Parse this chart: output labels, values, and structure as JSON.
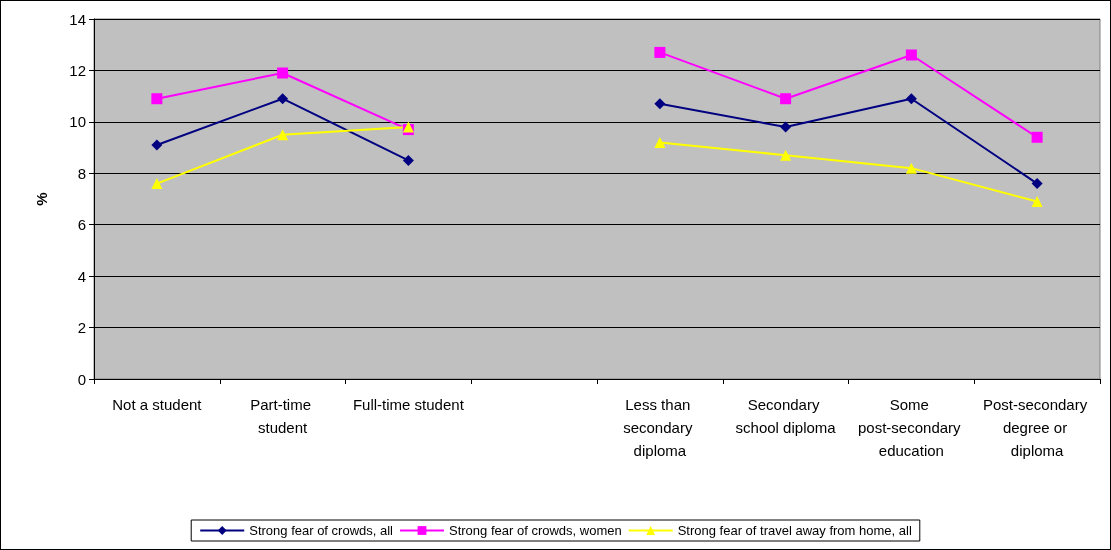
{
  "chart_data": {
    "type": "line",
    "ylabel": "%",
    "categories": [
      "Not a student",
      "Part-time student",
      "Full-time student",
      null,
      "Less than secondary diploma",
      "Secondary school diploma",
      "Some post-secondary education",
      "Post-secondary degree or diploma"
    ],
    "series": [
      {
        "name": "Strong fear of crowds, all",
        "color": "#000080",
        "marker": "diamond",
        "values": [
          9.1,
          10.9,
          8.5,
          null,
          10.7,
          9.8,
          10.9,
          7.6
        ]
      },
      {
        "name": "Strong fear of crowds, women",
        "color": "#ff00ff",
        "marker": "square",
        "values": [
          10.9,
          11.9,
          9.7,
          null,
          12.7,
          10.9,
          12.6,
          9.4
        ]
      },
      {
        "name": "Strong fear of travel away from home, all",
        "color": "#ffff00",
        "marker": "triangle",
        "values": [
          7.6,
          9.5,
          9.8,
          null,
          9.2,
          8.7,
          8.2,
          6.9
        ]
      }
    ],
    "ylim": [
      0,
      14
    ],
    "yticks": [
      0,
      2,
      4,
      6,
      8,
      10,
      12,
      14
    ],
    "grid": "y",
    "legend": "bottom"
  }
}
